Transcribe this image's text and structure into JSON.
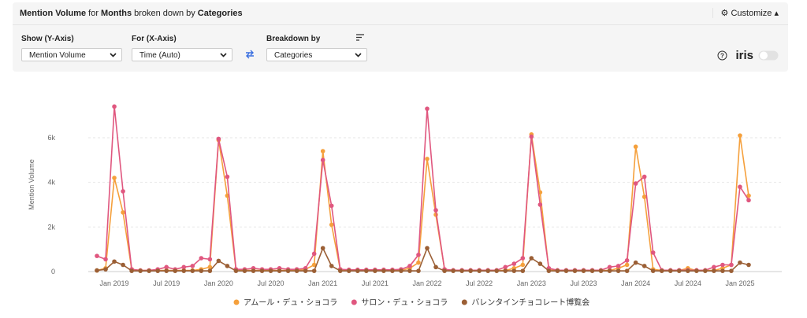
{
  "header": {
    "title_parts": [
      {
        "text": "Mention Volume",
        "bold": true
      },
      {
        "text": "for",
        "bold": false
      },
      {
        "text": "Months",
        "bold": true
      },
      {
        "text": "broken down by",
        "bold": false
      },
      {
        "text": "Categories",
        "bold": true
      }
    ],
    "customize": "Customize",
    "controls": [
      {
        "label": "Show (Y-Axis)",
        "value": "Mention Volume"
      },
      {
        "label": "For (X-Axis)",
        "value": "Time (Auto)"
      },
      {
        "label": "Breakdown by",
        "value": "Categories"
      }
    ],
    "iris": "iris"
  },
  "chart_data": {
    "type": "line",
    "y_label": "Mention Volume",
    "categories": [
      null,
      null,
      "Jan 2019",
      null,
      null,
      null,
      null,
      null,
      "Jul 2019",
      null,
      null,
      null,
      null,
      null,
      "Jan 2020",
      null,
      null,
      null,
      null,
      null,
      "Jul 2020",
      null,
      null,
      null,
      null,
      null,
      "Jan 2021",
      null,
      null,
      null,
      null,
      null,
      "Jul 2021",
      null,
      null,
      null,
      null,
      null,
      "Jan 2022",
      null,
      null,
      null,
      null,
      null,
      "Jul 2022",
      null,
      null,
      null,
      null,
      null,
      "Jan 2023",
      null,
      null,
      null,
      null,
      null,
      "Jul 2023",
      null,
      null,
      null,
      null,
      null,
      "Jan 2024",
      null,
      null,
      null,
      null,
      null,
      "Jul 2024",
      null,
      null,
      null,
      null,
      null,
      "Jan 2025",
      null
    ],
    "series": [
      {
        "name": "アムール・デュ・ショコラ",
        "color": "#f5a03c",
        "values": [
          50,
          150,
          4200,
          2650,
          100,
          50,
          50,
          50,
          50,
          50,
          50,
          50,
          100,
          200,
          5900,
          3400,
          100,
          50,
          50,
          50,
          50,
          50,
          50,
          50,
          100,
          300,
          5400,
          2100,
          100,
          50,
          50,
          50,
          50,
          50,
          50,
          50,
          150,
          400,
          5050,
          2550,
          100,
          50,
          50,
          50,
          50,
          50,
          50,
          50,
          150,
          300,
          6150,
          3550,
          100,
          50,
          50,
          50,
          50,
          50,
          50,
          50,
          150,
          300,
          5600,
          3350,
          100,
          50,
          50,
          50,
          150,
          50,
          50,
          50,
          150,
          300,
          6100,
          3400
        ]
      },
      {
        "name": "サロン・デュ・ショコラ",
        "color": "#e0577f",
        "values": [
          700,
          550,
          7400,
          3600,
          100,
          50,
          50,
          100,
          200,
          100,
          200,
          250,
          600,
          550,
          5950,
          4250,
          100,
          100,
          150,
          100,
          100,
          150,
          100,
          100,
          150,
          800,
          5000,
          2950,
          100,
          80,
          80,
          80,
          80,
          80,
          80,
          100,
          250,
          750,
          7300,
          2750,
          100,
          60,
          60,
          60,
          60,
          60,
          60,
          200,
          350,
          600,
          6050,
          3000,
          150,
          60,
          60,
          60,
          60,
          60,
          60,
          200,
          250,
          500,
          3950,
          4250,
          850,
          60,
          60,
          60,
          60,
          60,
          60,
          200,
          300,
          300,
          3800,
          3200
        ]
      },
      {
        "name": "バレンタインチョコレート博覧会",
        "color": "#9b5f35",
        "values": [
          50,
          100,
          450,
          300,
          30,
          30,
          30,
          30,
          30,
          30,
          30,
          30,
          30,
          30,
          480,
          250,
          30,
          30,
          30,
          30,
          30,
          30,
          30,
          30,
          30,
          30,
          1050,
          250,
          30,
          30,
          30,
          30,
          30,
          30,
          30,
          30,
          30,
          30,
          1050,
          200,
          30,
          30,
          30,
          30,
          30,
          30,
          30,
          30,
          30,
          30,
          600,
          350,
          30,
          30,
          30,
          30,
          30,
          30,
          30,
          30,
          30,
          30,
          400,
          250,
          30,
          30,
          30,
          30,
          30,
          30,
          30,
          30,
          30,
          30,
          400,
          300
        ]
      }
    ],
    "ylim": [
      0,
      7800
    ],
    "yticks": [
      0,
      {
        "value": 2000,
        "label": "2k"
      },
      {
        "value": 4000,
        "label": "4k"
      },
      {
        "value": 6000,
        "label": "6k"
      }
    ],
    "grid": true
  }
}
